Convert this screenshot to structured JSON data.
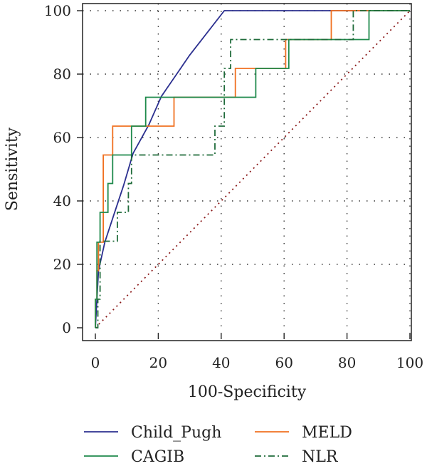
{
  "chart_data": {
    "type": "line",
    "title": "",
    "xlabel": "100-Specificity",
    "ylabel": "Sensitivity",
    "xlim": [
      0,
      100
    ],
    "ylim": [
      0,
      100
    ],
    "x_ticks": [
      0,
      20,
      40,
      60,
      80,
      100
    ],
    "y_ticks": [
      0,
      20,
      40,
      60,
      80,
      100
    ],
    "x_tick_labels": [
      "0",
      "20",
      "40",
      "60",
      "80",
      "100"
    ],
    "y_tick_labels": [
      "0",
      "20",
      "40",
      "60",
      "80",
      "100"
    ],
    "grid": true,
    "legend_position": "bottom",
    "reference_line": {
      "x": [
        0,
        100
      ],
      "y": [
        0,
        100
      ],
      "color": "#8b1a1a",
      "style": "dotted"
    },
    "series": [
      {
        "name": "Child_Pugh",
        "color": "#2b2f8f",
        "style": "solid",
        "x": [
          0,
          0.5,
          1,
          3,
          6,
          9,
          12,
          17,
          21,
          30,
          41,
          100
        ],
        "y": [
          0,
          9,
          18,
          27,
          36,
          45,
          55,
          64,
          73,
          86,
          100,
          100
        ]
      },
      {
        "name": "MELD",
        "color": "#f07020",
        "style": "solid",
        "x": [
          0,
          0,
          0.5,
          0.5,
          1,
          1,
          2.5,
          2.5,
          5.5,
          5.5,
          25,
          25,
          44.5,
          44.5,
          60.5,
          60.5,
          75,
          75,
          100
        ],
        "y": [
          0,
          9,
          9,
          18,
          18,
          27,
          27,
          54.5,
          54.5,
          63.6,
          63.6,
          72.7,
          72.7,
          81.8,
          81.8,
          90.9,
          90.9,
          100,
          100
        ]
      },
      {
        "name": "CAGIB",
        "color": "#1f8a4c",
        "style": "solid",
        "x": [
          0,
          0,
          0.5,
          0.5,
          1.5,
          1.5,
          4,
          4,
          5,
          5,
          5.5,
          5.5,
          11.5,
          11.5,
          16,
          16,
          22,
          22,
          51,
          51,
          61.5,
          61.5,
          87,
          87,
          100
        ],
        "y": [
          0,
          9,
          9,
          27,
          27,
          36.4,
          36.4,
          45.5,
          45.5,
          45.5,
          45.5,
          54.5,
          54.5,
          63.6,
          63.6,
          72.7,
          72.7,
          72.7,
          72.7,
          81.8,
          81.8,
          90.9,
          90.9,
          100,
          100
        ]
      },
      {
        "name": "NLR",
        "color": "#1f6b3a",
        "style": "dashdot",
        "x": [
          0,
          0.8,
          0.8,
          1.5,
          1.5,
          7,
          7,
          9,
          9,
          10.5,
          10.5,
          11.5,
          11.5,
          38,
          38,
          40,
          40,
          41,
          41,
          43,
          43,
          60,
          60,
          82,
          82,
          100
        ],
        "y": [
          0,
          0,
          9,
          9,
          27.3,
          27.3,
          36.4,
          36.4,
          36.4,
          36.4,
          45.5,
          45.5,
          54.5,
          54.5,
          63.6,
          63.6,
          63.6,
          63.6,
          81.8,
          81.8,
          90.9,
          90.9,
          90.9,
          90.9,
          100,
          100
        ]
      }
    ],
    "legend": [
      "Child_Pugh",
      "MELD",
      "CAGIB",
      "NLR"
    ]
  }
}
